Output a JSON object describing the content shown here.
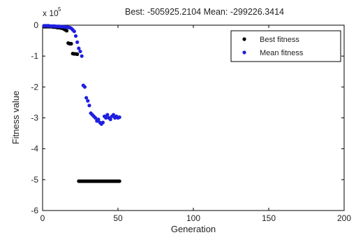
{
  "chart_data": {
    "type": "scatter",
    "title": "Best: -505925.2104 Mean: -299226.3414",
    "xlabel": "Generation",
    "ylabel": "Fitness value",
    "xlim": [
      0,
      200
    ],
    "ylim": [
      -6,
      0
    ],
    "y_multiplier": {
      "base": "x 10",
      "exponent": "5"
    },
    "xticks": [
      "0",
      "50",
      "100",
      "150",
      "200"
    ],
    "yticks": [
      "0",
      "-1",
      "-2",
      "-3",
      "-4",
      "-5",
      "-6"
    ],
    "legend_position": "top-right",
    "grid": false,
    "series": [
      {
        "name": "Best fitness",
        "color": "#000000",
        "x": [
          1,
          2,
          3,
          4,
          5,
          6,
          7,
          8,
          9,
          10,
          11,
          12,
          13,
          14,
          15,
          16,
          17,
          18,
          19,
          20,
          21,
          22,
          23,
          24,
          25,
          26,
          27,
          28,
          29,
          30,
          31,
          32,
          33,
          34,
          35,
          36,
          37,
          38,
          39,
          40,
          41,
          42,
          43,
          44,
          45,
          46,
          47,
          48,
          49,
          50,
          51
        ],
        "y": [
          -0.05,
          -0.05,
          -0.05,
          -0.05,
          -0.05,
          -0.05,
          -0.06,
          -0.06,
          -0.07,
          -0.08,
          -0.08,
          -0.09,
          -0.1,
          -0.12,
          -0.15,
          -0.18,
          -0.58,
          -0.6,
          -0.6,
          -0.92,
          -0.93,
          -0.93,
          -0.94,
          -5.05,
          -5.05,
          -5.05,
          -5.05,
          -5.05,
          -5.05,
          -5.05,
          -5.05,
          -5.05,
          -5.05,
          -5.05,
          -5.05,
          -5.05,
          -5.05,
          -5.05,
          -5.05,
          -5.05,
          -5.05,
          -5.05,
          -5.05,
          -5.05,
          -5.05,
          -5.05,
          -5.05,
          -5.05,
          -5.05,
          -5.05,
          -5.05
        ]
      },
      {
        "name": "Mean fitness",
        "color": "#1f1fe0",
        "x": [
          1,
          2,
          3,
          4,
          5,
          6,
          7,
          8,
          9,
          10,
          11,
          12,
          13,
          14,
          15,
          16,
          17,
          18,
          19,
          20,
          21,
          22,
          23,
          24,
          25,
          26,
          27,
          28,
          29,
          30,
          31,
          32,
          33,
          34,
          35,
          36,
          37,
          38,
          39,
          40,
          41,
          42,
          43,
          44,
          45,
          46,
          47,
          48,
          49,
          50,
          51
        ],
        "y": [
          -0.02,
          -0.02,
          -0.02,
          -0.02,
          -0.03,
          -0.03,
          -0.03,
          -0.03,
          -0.04,
          -0.04,
          -0.04,
          -0.05,
          -0.05,
          -0.05,
          -0.06,
          -0.06,
          -0.07,
          -0.08,
          -0.1,
          -0.15,
          -0.2,
          -0.35,
          -0.55,
          -0.75,
          -0.85,
          -1.0,
          -1.95,
          -2.0,
          -2.35,
          -2.45,
          -2.6,
          -2.85,
          -2.9,
          -2.95,
          -3.0,
          -3.1,
          -3.05,
          -3.15,
          -3.2,
          -3.15,
          -2.95,
          -3.0,
          -2.9,
          -3.0,
          -3.05,
          -2.95,
          -2.9,
          -3.0,
          -2.95,
          -3.0,
          -2.98
        ]
      }
    ]
  }
}
